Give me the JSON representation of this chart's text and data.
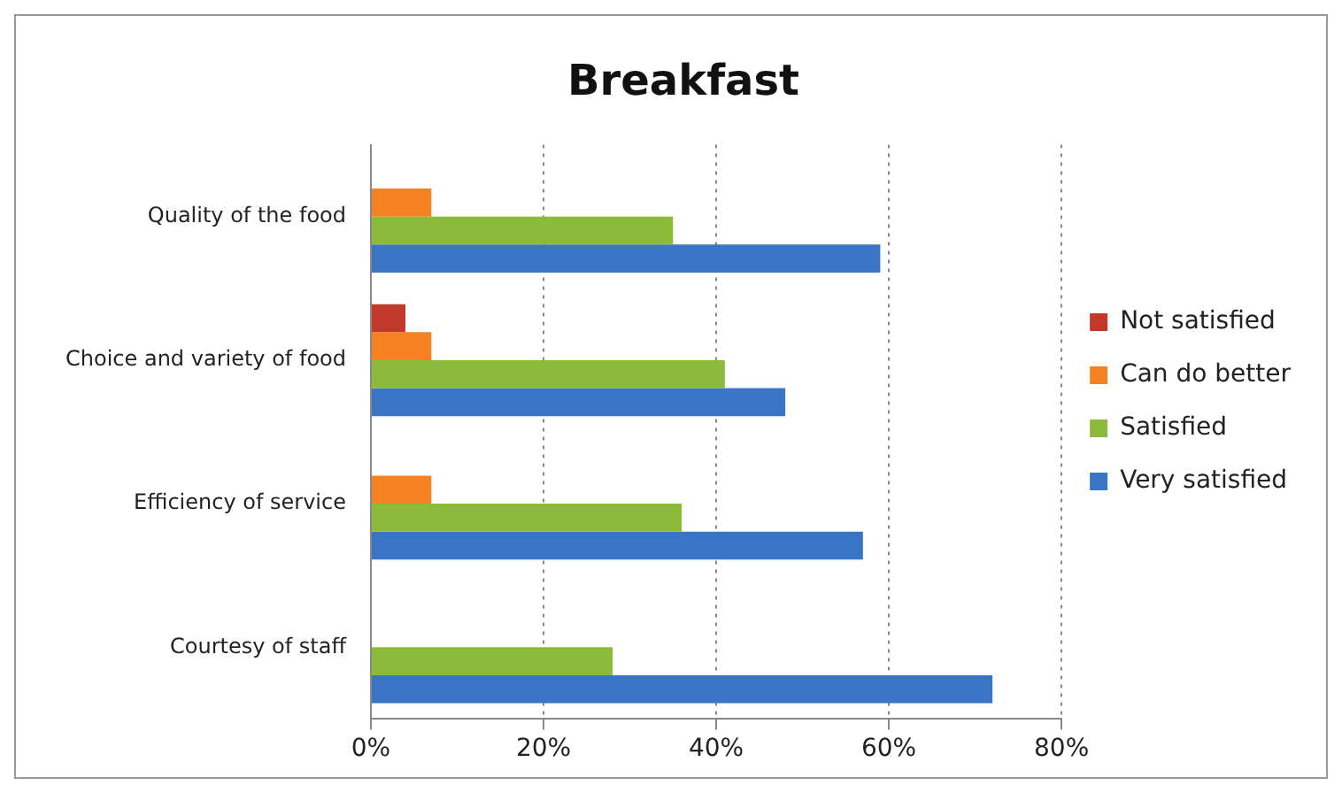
{
  "chart_data": {
    "type": "bar",
    "orientation": "horizontal",
    "title": "Breakfast",
    "categories": [
      "Quality of the food",
      "Choice and variety of food",
      "Efficiency of service",
      "Courtesy of staff"
    ],
    "series": [
      {
        "name": "Not satisfied",
        "color": "#c0392b",
        "values": [
          null,
          4,
          null,
          null
        ]
      },
      {
        "name": "Can do better",
        "color": "#f58220",
        "values": [
          7,
          7,
          7,
          null
        ]
      },
      {
        "name": "Satisfied",
        "color": "#8cbb3c",
        "values": [
          35,
          41,
          36,
          28
        ]
      },
      {
        "name": "Very satisfied",
        "color": "#3a74c4",
        "values": [
          59,
          48,
          57,
          72
        ]
      }
    ],
    "xlim": [
      0,
      80
    ],
    "xticks": [
      {
        "value": 0,
        "label": "0%"
      },
      {
        "value": 20,
        "label": "20%"
      },
      {
        "value": 40,
        "label": "40%"
      },
      {
        "value": 60,
        "label": "60%"
      },
      {
        "value": 80,
        "label": "80%"
      }
    ],
    "grid": "x",
    "legend": "right"
  }
}
